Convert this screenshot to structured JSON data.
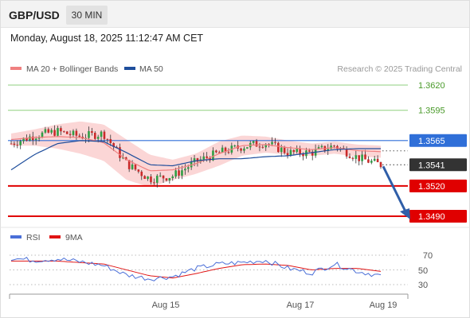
{
  "header": {
    "symbol": "GBP/USD",
    "timeframe": "30 MIN",
    "timestamp": "Monday, August 18, 2025 11:12:47 AM CET"
  },
  "price_panel": {
    "legend": [
      {
        "label": "MA 20 + Bollinger Bands",
        "color": "#f08080"
      },
      {
        "label": "MA 50",
        "color": "#1f4e9c"
      }
    ],
    "credit": "Research © 2025 Trading Central",
    "levels": [
      {
        "value": 1.362,
        "label": "1.3620",
        "style": "green-line"
      },
      {
        "value": 1.3595,
        "label": "1.3595",
        "style": "green-line"
      },
      {
        "value": 1.3565,
        "label": "1.3565",
        "style": "blue-tag"
      },
      {
        "value": 1.3541,
        "label": "1.3541",
        "style": "current-price"
      },
      {
        "value": 1.352,
        "label": "1.3520",
        "style": "red-tag"
      },
      {
        "value": 1.349,
        "label": "1.3490",
        "style": "red-tag"
      }
    ]
  },
  "rsi_panel": {
    "legend": [
      {
        "label": "RSI",
        "color": "#4a6fd8"
      },
      {
        "label": "9MA",
        "color": "#e01414"
      }
    ],
    "levels": [
      "70",
      "50",
      "30"
    ]
  },
  "x_axis": {
    "labels": [
      "Aug 15",
      "Aug 17",
      "Aug 19"
    ]
  },
  "colors": {
    "bull": "#2f9e44",
    "bear": "#c92a2a",
    "ma20": "#f08080",
    "ma50": "#1f4e9c",
    "band_fill": "#f9c8c8",
    "support": "#e00000",
    "resistance_green": "#8fcf7f",
    "pivot_blue": "#2f6fd8",
    "rsi": "#4a6fd8",
    "rsi_ma": "#e01414"
  },
  "chart_data": {
    "type": "line",
    "title": "GBP/USD 30 MIN",
    "series": [
      {
        "name": "GBP/USD",
        "x": [
          "Aug 14",
          "Aug 14",
          "Aug 14",
          "Aug 14",
          "Aug 14",
          "Aug 15",
          "Aug 15",
          "Aug 15",
          "Aug 15",
          "Aug 16",
          "Aug 16",
          "Aug 17",
          "Aug 17",
          "Aug 17",
          "Aug 18",
          "Aug 18",
          "Aug 18"
        ],
        "values": [
          1.3562,
          1.357,
          1.3574,
          1.3569,
          1.3572,
          1.3542,
          1.3527,
          1.353,
          1.3544,
          1.3553,
          1.3559,
          1.3563,
          1.3553,
          1.3553,
          1.356,
          1.3548,
          1.3541
        ]
      },
      {
        "name": "MA 50",
        "values": [
          1.3536,
          1.3551,
          1.3562,
          1.3565,
          1.3564,
          1.3553,
          1.3541,
          1.354,
          1.3545,
          1.3547,
          1.3547,
          1.3549,
          1.355,
          1.3553,
          1.3556,
          1.3557,
          1.3557
        ]
      },
      {
        "name": "MA 20",
        "values": [
          1.3566,
          1.3568,
          1.3569,
          1.3568,
          1.3563,
          1.3546,
          1.3535,
          1.3536,
          1.3542,
          1.3552,
          1.356,
          1.3561,
          1.3558,
          1.3556,
          1.3558,
          1.3555,
          1.3554
        ]
      }
    ],
    "rsi": {
      "RSI": [
        66,
        63,
        65,
        61,
        56,
        43,
        38,
        41,
        52,
        58,
        60,
        63,
        52,
        46,
        58,
        48,
        42
      ],
      "9MA": [
        62,
        62,
        62,
        60,
        58,
        50,
        42,
        39,
        45,
        52,
        57,
        58,
        56,
        50,
        52,
        52,
        48
      ]
    },
    "ylim": [
      1.3485,
      1.3635
    ],
    "rsi_ylim": [
      20,
      80
    ],
    "xlabel": "",
    "ylabel": "",
    "grid": false,
    "legend_position": "top-left",
    "projection": {
      "from": 1.3541,
      "to": 1.349,
      "direction": "down"
    }
  }
}
